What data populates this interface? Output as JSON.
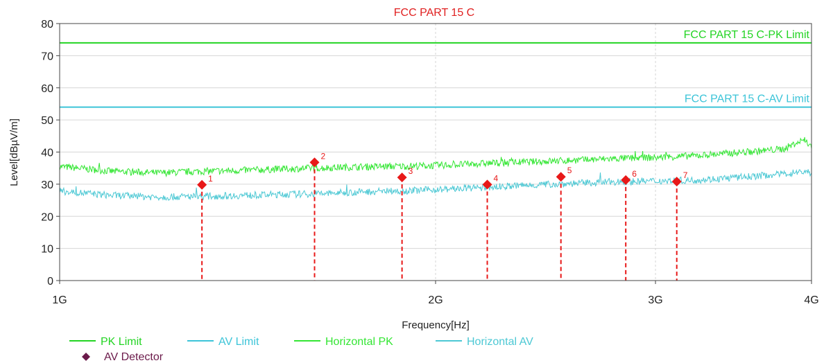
{
  "chart_data": {
    "type": "line",
    "title": "FCC PART 15 C",
    "xlabel": "Frequency[Hz]",
    "ylabel": "Level[dBµV/m]",
    "x_scale": "log",
    "xlim_hz": [
      1000000000,
      4000000000
    ],
    "ylim": [
      0,
      80
    ],
    "x_ticks": [
      {
        "value": 1000000000,
        "label": "1G"
      },
      {
        "value": 2000000000,
        "label": "2G"
      },
      {
        "value": 3000000000,
        "label": "3G"
      },
      {
        "value": 4000000000,
        "label": "4G"
      }
    ],
    "y_ticks": [
      0,
      10,
      20,
      30,
      40,
      50,
      60,
      70,
      80
    ],
    "grid": true,
    "limits": [
      {
        "name": "PK Limit",
        "label": "FCC PART 15 C-PK Limit",
        "value": 74,
        "color": "#22d422"
      },
      {
        "name": "AV Limit",
        "label": "FCC PART 15 C-AV Limit",
        "value": 54,
        "color": "#3cc4d8"
      }
    ],
    "series": [
      {
        "name": "Horizontal PK",
        "color": "#33e633",
        "x_ghz": [
          1.0,
          1.1,
          1.2,
          1.3,
          1.4,
          1.5,
          1.6,
          1.7,
          1.8,
          1.9,
          2.0,
          2.2,
          2.4,
          2.6,
          2.8,
          3.0,
          3.2,
          3.4,
          3.6,
          3.8,
          3.95,
          4.0
        ],
        "y": [
          35.5,
          34,
          33.5,
          34,
          34.3,
          34.7,
          35,
          35.3,
          35.5,
          35.6,
          35.8,
          36.5,
          37,
          37.5,
          38,
          38.3,
          38.8,
          39.5,
          40.2,
          41,
          44,
          41.5
        ]
      },
      {
        "name": "Horizontal AV",
        "color": "#4cc8d4",
        "x_ghz": [
          1.0,
          1.1,
          1.2,
          1.3,
          1.4,
          1.5,
          1.6,
          1.7,
          1.8,
          1.9,
          2.0,
          2.2,
          2.4,
          2.6,
          2.8,
          3.0,
          3.2,
          3.4,
          3.6,
          3.8,
          3.95,
          4.0
        ],
        "y": [
          27.8,
          26.5,
          26,
          26.2,
          26.5,
          26.8,
          27,
          27.4,
          27.8,
          28,
          28.3,
          29,
          29.8,
          30.3,
          30.8,
          31,
          31.2,
          31.8,
          32.5,
          33.2,
          34,
          33.5
        ]
      }
    ],
    "markers": {
      "name": "AV Detector",
      "color": "#e81818",
      "legend_color": "#6b1a4a",
      "points": [
        {
          "label": "1",
          "x_ghz": 1.3,
          "y": 29.8
        },
        {
          "label": "2",
          "x_ghz": 1.6,
          "y": 36.8
        },
        {
          "label": "3",
          "x_ghz": 1.88,
          "y": 32.1
        },
        {
          "label": "4",
          "x_ghz": 2.2,
          "y": 29.9
        },
        {
          "label": "5",
          "x_ghz": 2.52,
          "y": 32.3
        },
        {
          "label": "6",
          "x_ghz": 2.84,
          "y": 31.3
        },
        {
          "label": "7",
          "x_ghz": 3.12,
          "y": 30.8
        }
      ]
    },
    "legend": {
      "placement": "bottom",
      "entries": [
        "PK Limit",
        "AV Limit",
        "Horizontal PK",
        "Horizontal AV",
        "AV Detector"
      ]
    }
  }
}
